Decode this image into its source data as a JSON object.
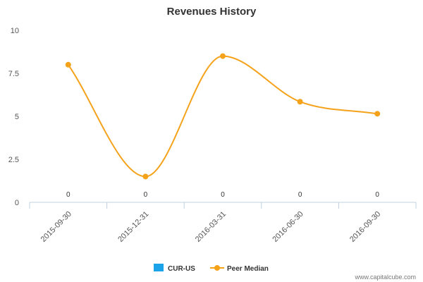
{
  "chart_data": {
    "type": "line",
    "title": "Revenues History",
    "categories": [
      "2015-09-30",
      "2015-12-31",
      "2016-03-31",
      "2016-06-30",
      "2016-09-30"
    ],
    "xlabel": "",
    "ylabel": "",
    "ylim": [
      0,
      10
    ],
    "yticks": [
      {
        "value": 0,
        "label": "0"
      },
      {
        "value": 2.5,
        "label": "2.5"
      },
      {
        "value": 5,
        "label": "5"
      },
      {
        "value": 7.5,
        "label": "7.5"
      },
      {
        "value": 10,
        "label": "10"
      }
    ],
    "grid": false,
    "legend_position": "bottom-center",
    "series": [
      {
        "name": "CUR-US",
        "type": "bar",
        "color": "#1aa3e8",
        "values": [
          0,
          0,
          0,
          0,
          0
        ],
        "labels": [
          "0",
          "0",
          "0",
          "0",
          "0"
        ]
      },
      {
        "name": "Peer Median",
        "type": "line",
        "color": "#f5a21b",
        "values": [
          8.0,
          1.5,
          8.5,
          5.85,
          5.15
        ]
      }
    ]
  },
  "watermark": "www.capitalcube.com"
}
